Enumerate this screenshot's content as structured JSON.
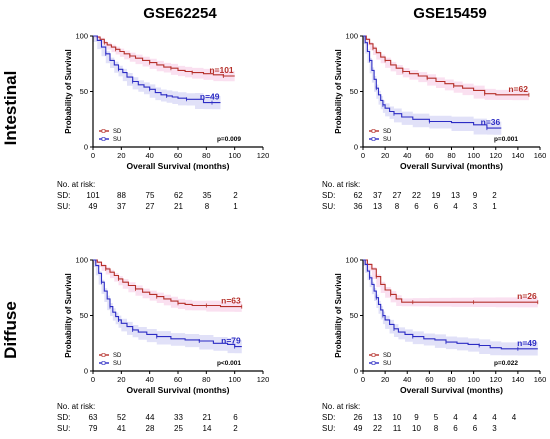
{
  "colors": {
    "sd": "#b5302a",
    "su": "#2c2cc4",
    "sd_band": "#f6c6e4",
    "su_band": "#c9c9f2",
    "axis": "#000000"
  },
  "column_titles": [
    "GSE62254",
    "GSE15459"
  ],
  "row_titles": [
    "Intestinal",
    "Diffuse"
  ],
  "risk_heading": "No. at risk:",
  "risk_sd_label": "SD:",
  "risk_su_label": "SU:",
  "chart_data": [
    {
      "type": "line",
      "subtype": "kaplan-meier",
      "title": "GSE62254",
      "row": "Intestinal",
      "xlabel": "Overall Survival (months)",
      "ylabel": "Probability of Survival",
      "xlim": [
        0,
        120
      ],
      "ylim": [
        0,
        100
      ],
      "xticks": [
        0,
        20,
        40,
        60,
        80,
        100,
        120
      ],
      "yticks": [
        0,
        50,
        100
      ],
      "legend": [
        "SD",
        "SU"
      ],
      "legend_position": "bottom-left",
      "p_value": "p=0.009",
      "series": [
        {
          "name": "SD",
          "n_label": "n=101",
          "points": [
            [
              0,
              100
            ],
            [
              3,
              99
            ],
            [
              5,
              97
            ],
            [
              8,
              94
            ],
            [
              10,
              92
            ],
            [
              13,
              90
            ],
            [
              16,
              88
            ],
            [
              19,
              86
            ],
            [
              22,
              84
            ],
            [
              26,
              82
            ],
            [
              30,
              80
            ],
            [
              35,
              78
            ],
            [
              40,
              76
            ],
            [
              45,
              74
            ],
            [
              50,
              72
            ],
            [
              55,
              71
            ],
            [
              60,
              69
            ],
            [
              65,
              68
            ],
            [
              70,
              67
            ],
            [
              78,
              66
            ],
            [
              85,
              65
            ],
            [
              92,
              64
            ],
            [
              100,
              64
            ]
          ]
        },
        {
          "name": "SU",
          "n_label": "n=49",
          "points": [
            [
              0,
              100
            ],
            [
              3,
              96
            ],
            [
              6,
              90
            ],
            [
              9,
              84
            ],
            [
              12,
              78
            ],
            [
              15,
              74
            ],
            [
              18,
              70
            ],
            [
              21,
              67
            ],
            [
              24,
              63
            ],
            [
              28,
              59
            ],
            [
              32,
              56
            ],
            [
              36,
              54
            ],
            [
              40,
              52
            ],
            [
              44,
              49
            ],
            [
              48,
              47
            ],
            [
              52,
              46
            ],
            [
              56,
              45
            ],
            [
              60,
              44
            ],
            [
              66,
              43
            ],
            [
              72,
              43
            ],
            [
              78,
              40
            ],
            [
              84,
              40
            ],
            [
              90,
              40
            ]
          ]
        }
      ],
      "risk_times": [
        0,
        20,
        40,
        60,
        80,
        100
      ],
      "risk": {
        "SD": [
          101,
          88,
          75,
          62,
          35,
          2
        ],
        "SU": [
          49,
          37,
          27,
          21,
          8,
          1
        ]
      }
    },
    {
      "type": "line",
      "subtype": "kaplan-meier",
      "title": "GSE15459",
      "row": "Intestinal",
      "xlabel": "Overall Survival (months)",
      "ylabel": "Probability of Survival",
      "xlim": [
        0,
        160
      ],
      "ylim": [
        0,
        100
      ],
      "xticks": [
        0,
        20,
        40,
        60,
        80,
        100,
        120,
        140,
        160
      ],
      "yticks": [
        0,
        50,
        100
      ],
      "legend": [
        "SD",
        "SU"
      ],
      "legend_position": "bottom-left",
      "p_value": "p=0.001",
      "series": [
        {
          "name": "SD",
          "n_label": "n=62",
          "points": [
            [
              0,
              100
            ],
            [
              3,
              97
            ],
            [
              6,
              93
            ],
            [
              9,
              89
            ],
            [
              12,
              85
            ],
            [
              16,
              81
            ],
            [
              20,
              78
            ],
            [
              25,
              74
            ],
            [
              30,
              71
            ],
            [
              36,
              68
            ],
            [
              42,
              66
            ],
            [
              50,
              64
            ],
            [
              58,
              62
            ],
            [
              66,
              59
            ],
            [
              74,
              57
            ],
            [
              82,
              55
            ],
            [
              90,
              53
            ],
            [
              100,
              51
            ],
            [
              110,
              48
            ],
            [
              120,
              47
            ],
            [
              135,
              47
            ],
            [
              150,
              47
            ]
          ]
        },
        {
          "name": "SU",
          "n_label": "n=36",
          "points": [
            [
              0,
              100
            ],
            [
              2,
              94
            ],
            [
              4,
              86
            ],
            [
              6,
              78
            ],
            [
              8,
              69
            ],
            [
              10,
              61
            ],
            [
              12,
              53
            ],
            [
              14,
              47
            ],
            [
              16,
              42
            ],
            [
              18,
              38
            ],
            [
              20,
              35
            ],
            [
              24,
              32
            ],
            [
              28,
              30
            ],
            [
              35,
              27
            ],
            [
              45,
              25
            ],
            [
              60,
              23
            ],
            [
              80,
              22
            ],
            [
              100,
              20
            ],
            [
              112,
              17
            ],
            [
              118,
              17
            ],
            [
              125,
              17
            ]
          ]
        }
      ],
      "risk_times": [
        0,
        20,
        40,
        60,
        80,
        100,
        120,
        140
      ],
      "risk": {
        "SD": [
          62,
          37,
          27,
          22,
          19,
          13,
          9,
          2
        ],
        "SU": [
          36,
          13,
          8,
          6,
          6,
          4,
          3,
          1
        ]
      }
    },
    {
      "type": "line",
      "subtype": "kaplan-meier",
      "title": "",
      "row": "Diffuse",
      "xlabel": "Overall Survival (months)",
      "ylabel": "Probability of Survival",
      "xlim": [
        0,
        120
      ],
      "ylim": [
        0,
        100
      ],
      "xticks": [
        0,
        20,
        40,
        60,
        80,
        100,
        120
      ],
      "yticks": [
        0,
        50,
        100
      ],
      "legend": [
        "SD",
        "SU"
      ],
      "legend_position": "bottom-left",
      "p_value": "p<0.001",
      "series": [
        {
          "name": "SD",
          "n_label": "n=63",
          "points": [
            [
              0,
              100
            ],
            [
              3,
              98
            ],
            [
              6,
              95
            ],
            [
              9,
              92
            ],
            [
              12,
              89
            ],
            [
              15,
              86
            ],
            [
              18,
              83
            ],
            [
              21,
              80
            ],
            [
              25,
              77
            ],
            [
              30,
              74
            ],
            [
              35,
              71
            ],
            [
              40,
              69
            ],
            [
              45,
              67
            ],
            [
              50,
              65
            ],
            [
              55,
              63
            ],
            [
              60,
              61
            ],
            [
              65,
              60
            ],
            [
              70,
              59
            ],
            [
              80,
              59
            ],
            [
              90,
              58
            ],
            [
              100,
              58
            ],
            [
              105,
              58
            ]
          ]
        },
        {
          "name": "SU",
          "n_label": "n=79",
          "points": [
            [
              0,
              100
            ],
            [
              2,
              95
            ],
            [
              4,
              88
            ],
            [
              6,
              80
            ],
            [
              8,
              72
            ],
            [
              10,
              65
            ],
            [
              12,
              58
            ],
            [
              14,
              53
            ],
            [
              16,
              49
            ],
            [
              18,
              46
            ],
            [
              20,
              43
            ],
            [
              24,
              40
            ],
            [
              28,
              37
            ],
            [
              32,
              35
            ],
            [
              38,
              33
            ],
            [
              45,
              31
            ],
            [
              55,
              29
            ],
            [
              65,
              28
            ],
            [
              75,
              27
            ],
            [
              85,
              25
            ],
            [
              95,
              24
            ],
            [
              100,
              22
            ],
            [
              105,
              22
            ]
          ]
        }
      ],
      "risk_times": [
        0,
        20,
        40,
        60,
        80,
        100
      ],
      "risk": {
        "SD": [
          63,
          52,
          44,
          33,
          21,
          6
        ],
        "SU": [
          79,
          41,
          28,
          25,
          14,
          2
        ]
      }
    },
    {
      "type": "line",
      "subtype": "kaplan-meier",
      "title": "",
      "row": "Diffuse",
      "xlabel": "Overall Survival (months)",
      "ylabel": "Probability of Survival",
      "xlim": [
        0,
        160
      ],
      "ylim": [
        0,
        100
      ],
      "xticks": [
        0,
        20,
        40,
        60,
        80,
        100,
        120,
        140,
        160
      ],
      "yticks": [
        0,
        50,
        100
      ],
      "legend": [
        "SD",
        "SU"
      ],
      "legend_position": "bottom-left",
      "p_value": "p=0.022",
      "series": [
        {
          "name": "SD",
          "n_label": "n=26",
          "points": [
            [
              0,
              100
            ],
            [
              4,
              96
            ],
            [
              8,
              92
            ],
            [
              12,
              85
            ],
            [
              16,
              78
            ],
            [
              20,
              73
            ],
            [
              25,
              69
            ],
            [
              30,
              65
            ],
            [
              35,
              62
            ],
            [
              45,
              62
            ],
            [
              60,
              62
            ],
            [
              80,
              62
            ],
            [
              100,
              62
            ],
            [
              120,
              62
            ],
            [
              140,
              62
            ],
            [
              158,
              62
            ]
          ]
        },
        {
          "name": "SU",
          "n_label": "n=49",
          "points": [
            [
              0,
              100
            ],
            [
              2,
              96
            ],
            [
              4,
              90
            ],
            [
              6,
              84
            ],
            [
              8,
              78
            ],
            [
              10,
              72
            ],
            [
              12,
              66
            ],
            [
              14,
              60
            ],
            [
              16,
              55
            ],
            [
              18,
              50
            ],
            [
              20,
              46
            ],
            [
              24,
              42
            ],
            [
              28,
              38
            ],
            [
              32,
              35
            ],
            [
              38,
              33
            ],
            [
              45,
              31
            ],
            [
              55,
              29
            ],
            [
              65,
              28
            ],
            [
              75,
              26
            ],
            [
              85,
              25
            ],
            [
              95,
              24
            ],
            [
              105,
              23
            ],
            [
              115,
              21
            ],
            [
              125,
              20
            ],
            [
              140,
              20
            ],
            [
              158,
              20
            ]
          ]
        }
      ],
      "risk_times": [
        0,
        20,
        40,
        60,
        80,
        100,
        120,
        140,
        160
      ],
      "risk": {
        "SD": [
          26,
          13,
          10,
          9,
          5,
          4,
          4,
          4,
          4
        ],
        "SU": [
          49,
          22,
          11,
          10,
          8,
          6,
          6,
          3,
          ""
        ]
      }
    }
  ]
}
